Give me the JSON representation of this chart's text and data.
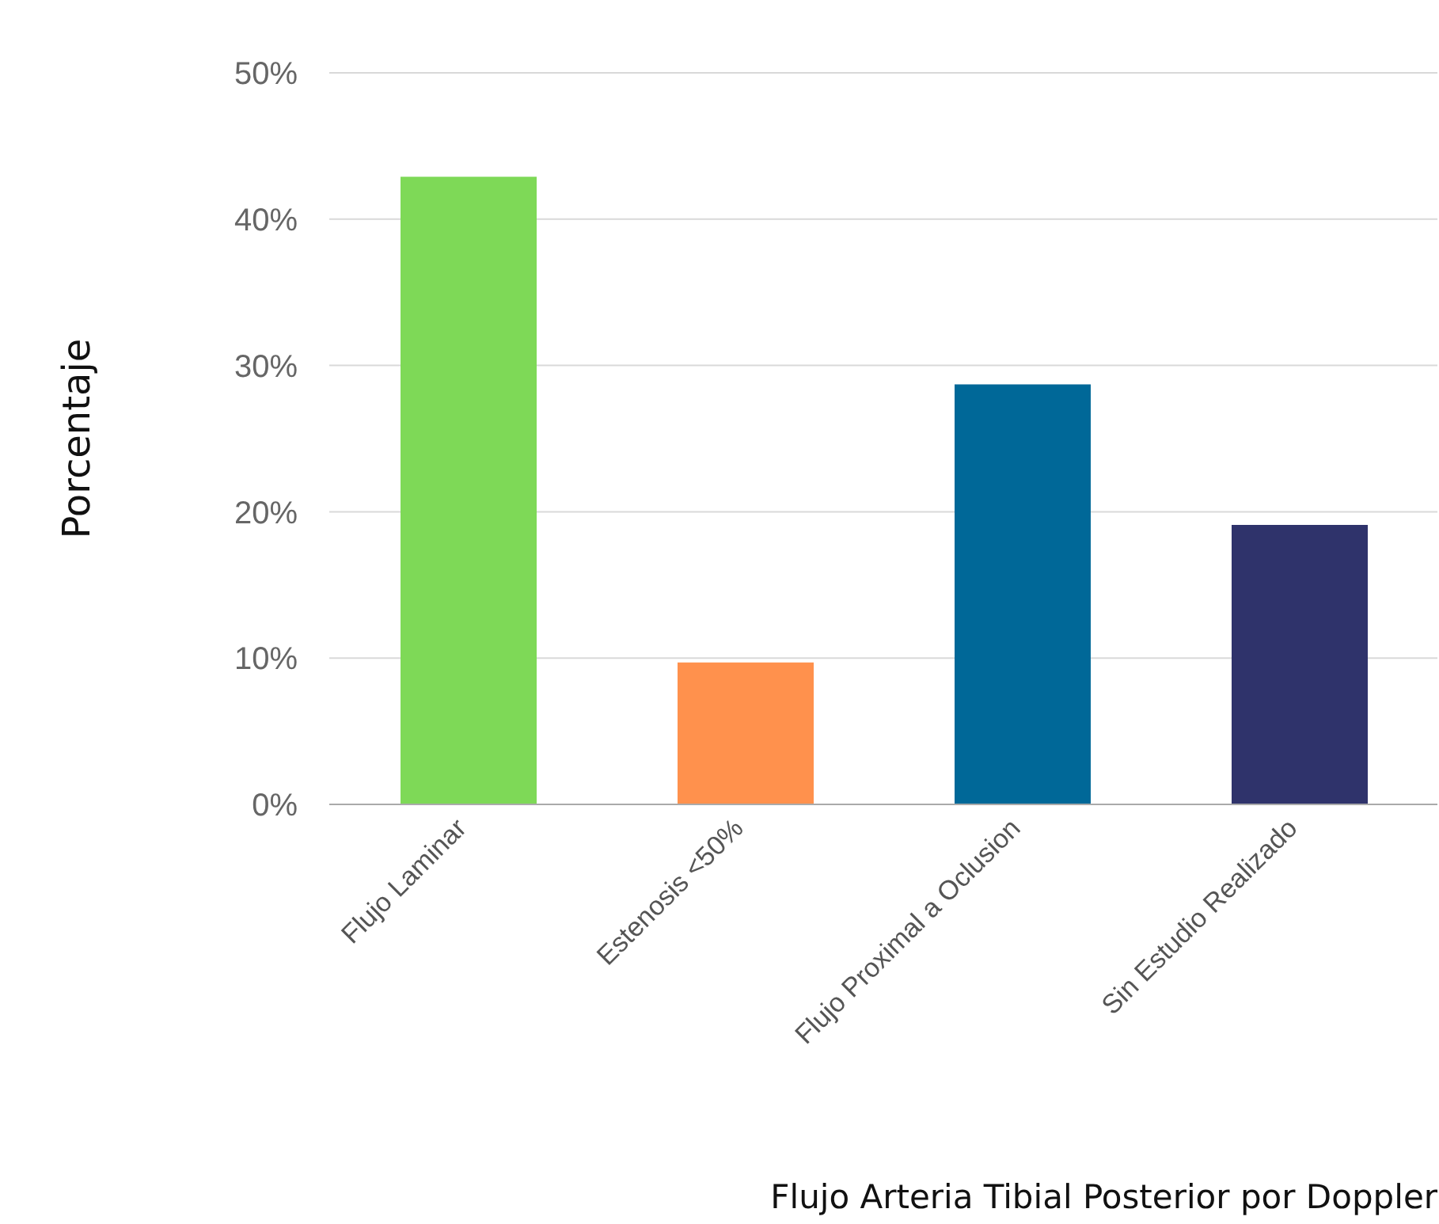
{
  "chart_data": {
    "type": "bar",
    "xlabel": "Flujo Arteria Tibial Posterior por Doppler",
    "ylabel": "Porcentaje",
    "categories": [
      "Flujo Laminar",
      "Estenosis <50%",
      "Flujo Proximal a Oclusion",
      "Sin Estudio Realizado"
    ],
    "values": [
      42.9,
      9.7,
      28.7,
      19.1
    ],
    "colors": [
      "#7ed957",
      "#ff914d",
      "#006898",
      "#2f336b"
    ],
    "ylim": [
      0,
      50
    ],
    "yticks": [
      {
        "value": 0,
        "label": "0%"
      },
      {
        "value": 10,
        "label": "10%"
      },
      {
        "value": 20,
        "label": "20%"
      },
      {
        "value": 30,
        "label": "30%"
      },
      {
        "value": 40,
        "label": "40%"
      },
      {
        "value": 50,
        "label": "50%"
      }
    ],
    "grid": "y"
  }
}
